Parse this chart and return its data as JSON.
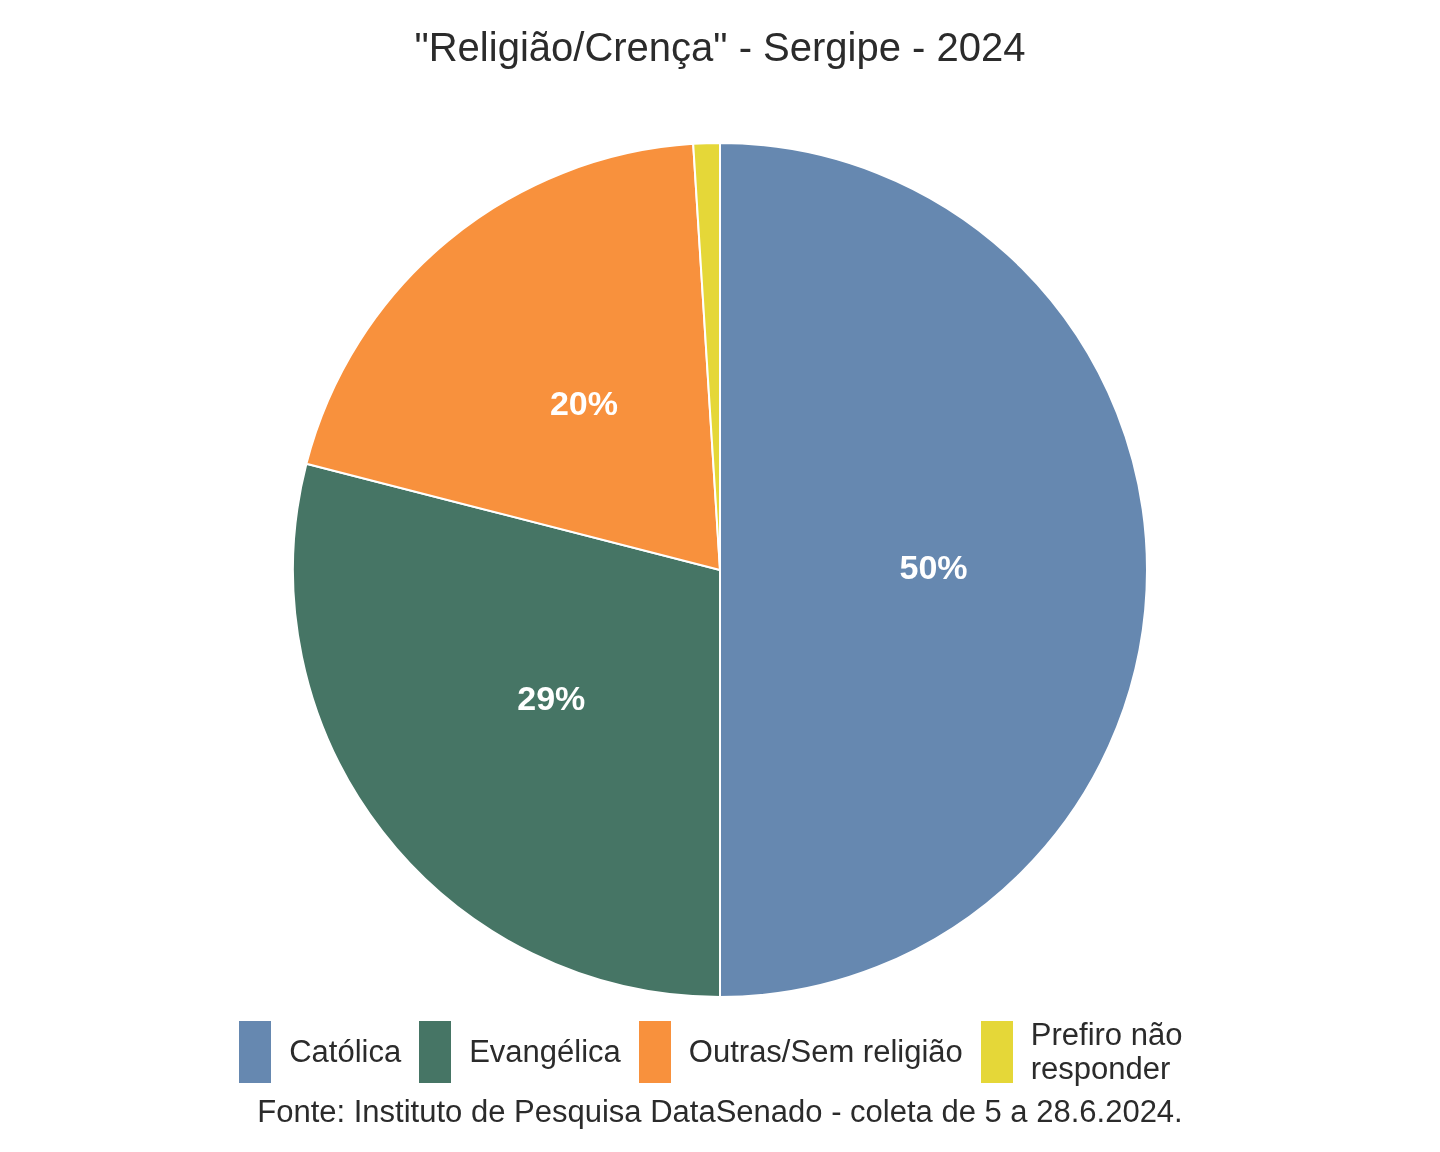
{
  "chart_data": {
    "type": "pie",
    "title": "\"Religião/Crença\" - Sergipe - 2024",
    "categories": [
      "Católica",
      "Evangélica",
      "Outras/Sem religião",
      "Prefiro não responder"
    ],
    "values": [
      50,
      29,
      20,
      1
    ],
    "colors": [
      "#6688b0",
      "#467565",
      "#f8913d",
      "#e5d738"
    ],
    "value_labels": [
      "50%",
      "29%",
      "20%",
      null
    ],
    "legend": "bottom",
    "annotations": [
      "Fonte: Instituto de Pesquisa DataSenado - coleta de 5 a 28.6.2024."
    ]
  }
}
